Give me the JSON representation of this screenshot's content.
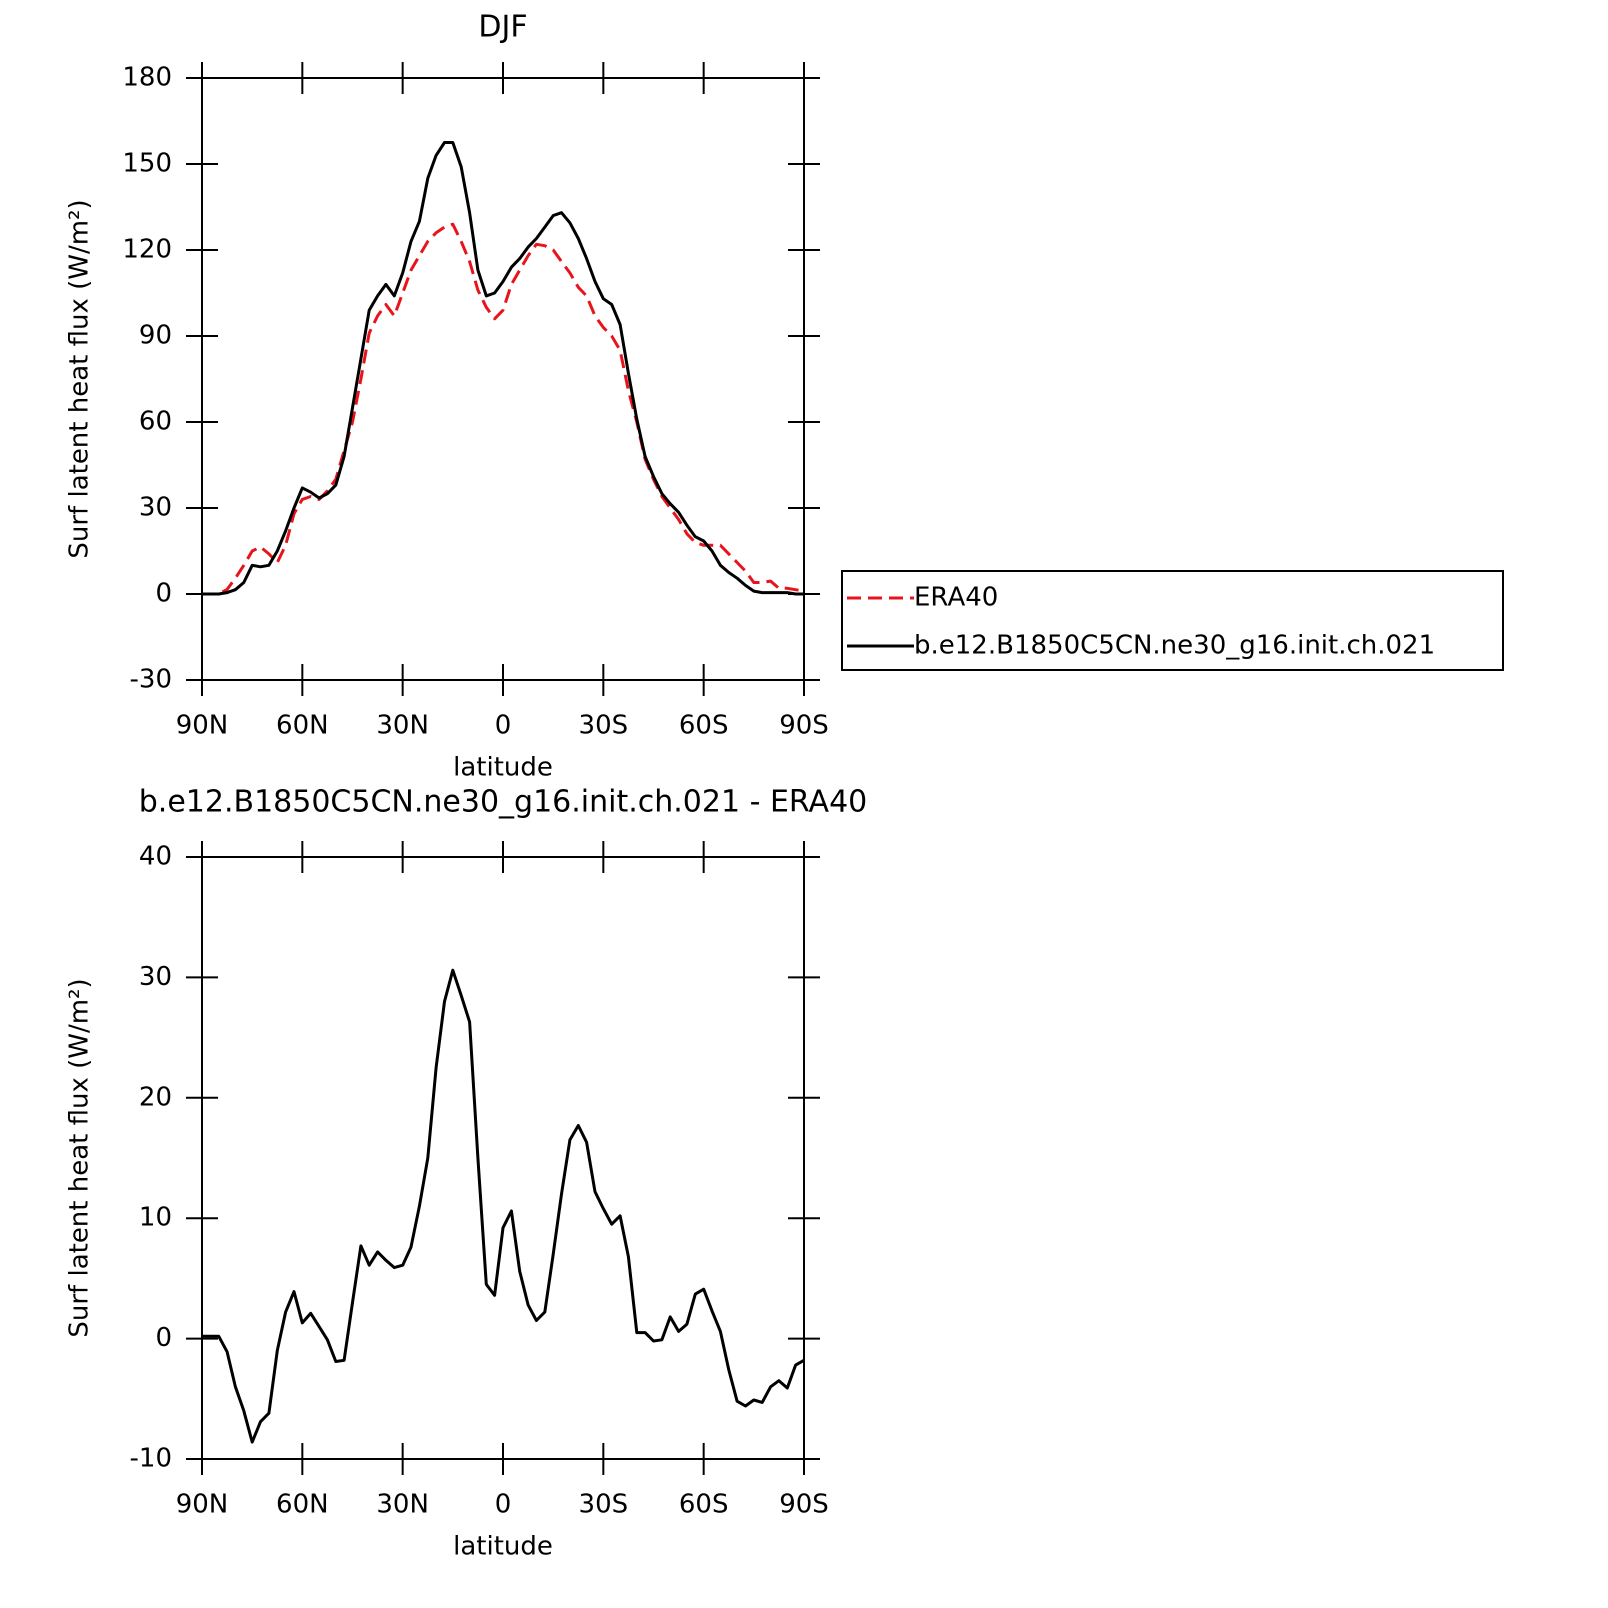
{
  "chart_data": [
    {
      "type": "line",
      "title": "DJF",
      "xlabel": "latitude",
      "ylabel": "Surf latent heat flux (W/m²)",
      "x": [
        90,
        87.5,
        85,
        82.5,
        80,
        77.5,
        75,
        72.5,
        70,
        67.5,
        65,
        62.5,
        60,
        57.5,
        55,
        52.5,
        50,
        47.5,
        45,
        42.5,
        40,
        37.5,
        35,
        32.5,
        30,
        27.5,
        25,
        22.5,
        20,
        17.5,
        15,
        12.5,
        10,
        7.5,
        5,
        2.5,
        0,
        -2.5,
        -5,
        -7.5,
        -10,
        -12.5,
        -15,
        -17.5,
        -20,
        -22.5,
        -25,
        -27.5,
        -30,
        -32.5,
        -35,
        -37.5,
        -40,
        -42.5,
        -45,
        -47.5,
        -50,
        -52.5,
        -55,
        -57.5,
        -60,
        -62.5,
        -65,
        -67.5,
        -70,
        -72.5,
        -75,
        -77.5,
        -80,
        -82.5,
        -85,
        -87.5,
        -90
      ],
      "xlim": [
        90,
        -90
      ],
      "xticks": [
        {
          "value": 90,
          "label": "90N"
        },
        {
          "value": 60,
          "label": "60N"
        },
        {
          "value": 30,
          "label": "30N"
        },
        0,
        {
          "value": -30,
          "label": "30S"
        },
        {
          "value": -60,
          "label": "60S"
        },
        {
          "value": -90,
          "label": "90S"
        }
      ],
      "ylim": [
        -30,
        180
      ],
      "yticks": [
        -30,
        0,
        30,
        60,
        90,
        120,
        150,
        180
      ],
      "legend": "right",
      "series": [
        {
          "name": "ERA40",
          "color": "#e8141c",
          "linestyle": "dashed",
          "values": [
            0,
            0,
            0,
            1.6,
            5.5,
            10,
            15,
            16.4,
            14,
            11,
            17,
            28,
            33,
            34,
            33,
            36,
            40,
            50,
            60,
            75,
            91,
            97,
            101,
            97,
            105,
            113,
            118,
            123,
            126,
            128,
            129,
            123,
            116,
            106,
            100,
            96,
            99,
            108,
            113,
            118,
            122,
            121.5,
            120,
            116,
            112,
            107,
            104,
            97,
            93,
            90,
            85,
            71,
            60,
            47,
            40,
            34,
            30,
            26,
            21,
            18,
            17,
            17,
            17,
            14,
            11,
            8,
            4,
            4,
            4.5,
            2,
            2,
            1.5,
            1
          ]
        },
        {
          "name": "b.e12.B1850C5CN.ne30_g16.init.ch.021",
          "color": "#000000",
          "linestyle": "solid",
          "values": [
            0,
            0,
            0,
            0.5,
            1.5,
            4,
            10,
            9.5,
            10,
            15,
            22,
            30,
            37,
            35.5,
            33.5,
            35,
            38,
            48,
            65,
            82,
            99,
            104,
            108,
            104,
            112,
            123,
            130,
            145,
            153,
            157.5,
            157.5,
            149,
            133,
            113,
            104,
            105,
            109,
            114,
            117,
            121,
            124,
            128,
            132,
            133,
            129.5,
            124,
            117,
            109,
            103,
            101,
            94,
            77,
            61,
            48,
            41,
            35,
            31.5,
            28.5,
            24,
            20,
            18.5,
            15,
            10,
            7.5,
            5.5,
            3,
            1,
            0.5,
            0.5,
            0.5,
            0.5,
            0,
            0
          ]
        }
      ]
    },
    {
      "type": "line",
      "title": "b.e12.B1850C5CN.ne30_g16.init.ch.021 - ERA40",
      "xlabel": "latitude",
      "ylabel": "Surf latent heat flux (W/m²)",
      "x": [
        90,
        87.5,
        85,
        82.5,
        80,
        77.5,
        75,
        72.5,
        70,
        67.5,
        65,
        62.5,
        60,
        57.5,
        55,
        52.5,
        50,
        47.5,
        45,
        42.5,
        40,
        37.5,
        35,
        32.5,
        30,
        27.5,
        25,
        22.5,
        20,
        17.5,
        15,
        12.5,
        10,
        7.5,
        5,
        2.5,
        0,
        -2.5,
        -5,
        -7.5,
        -10,
        -12.5,
        -15,
        -17.5,
        -20,
        -22.5,
        -25,
        -27.5,
        -30,
        -32.5,
        -35,
        -37.5,
        -40,
        -42.5,
        -45,
        -47.5,
        -50,
        -52.5,
        -55,
        -57.5,
        -60,
        -62.5,
        -65,
        -67.5,
        -70,
        -72.5,
        -75,
        -77.5,
        -80,
        -82.5,
        -85,
        -87.5,
        -90
      ],
      "xlim": [
        90,
        -90
      ],
      "xticks": [
        {
          "value": 90,
          "label": "90N"
        },
        {
          "value": 60,
          "label": "60N"
        },
        {
          "value": 30,
          "label": "30N"
        },
        0,
        {
          "value": -30,
          "label": "30S"
        },
        {
          "value": -60,
          "label": "60S"
        },
        {
          "value": -90,
          "label": "90S"
        }
      ],
      "ylim": [
        -10,
        40
      ],
      "yticks": [
        -10,
        0,
        10,
        20,
        30,
        40
      ],
      "color": "#000000",
      "values": [
        0.2,
        0.2,
        0.2,
        -1.1,
        -4,
        -6,
        -8.6,
        -6.9,
        -6.2,
        -1,
        2.2,
        3.9,
        1.3,
        2.1,
        1,
        -0.1,
        -1.9,
        -1.8,
        3,
        7.7,
        6.1,
        7.2,
        6.5,
        5.9,
        6.1,
        7.6,
        11,
        15,
        22.5,
        28,
        30.6,
        28.5,
        26.3,
        15,
        4.5,
        3.6,
        9.2,
        10.6,
        5.6,
        2.8,
        1.5,
        2.2,
        7,
        12,
        16.5,
        17.7,
        16.3,
        12.2,
        10.8,
        9.5,
        10.2,
        6.8,
        0.5,
        0.5,
        -0.2,
        -0.1,
        1.8,
        0.6,
        1.2,
        3.7,
        4.1,
        2.3,
        0.6,
        -2.6,
        -5.2,
        -5.6,
        -5.1,
        -5.3,
        -4,
        -3.5,
        -4.1,
        -2.2,
        -1.8
      ]
    }
  ]
}
